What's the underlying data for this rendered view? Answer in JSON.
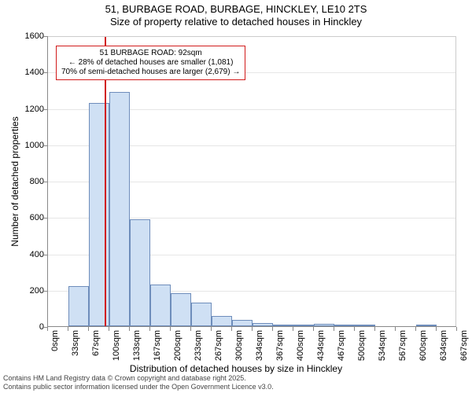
{
  "title_line1": "51, BURBAGE ROAD, BURBAGE, HINCKLEY, LE10 2TS",
  "title_line2": "Size of property relative to detached houses in Hinckley",
  "chart": {
    "type": "histogram",
    "bar_fill": "#cfe0f4",
    "bar_border": "#6e8dbb",
    "background_color": "#ffffff",
    "grid_color": "#e6e6e6",
    "marker_color": "#d11a1a",
    "annotation_border": "#d11a1a",
    "y_axis_label": "Number of detached properties",
    "x_axis_label": "Distribution of detached houses by size in Hinckley",
    "y_max": 1600,
    "y_tick_step": 200,
    "y_ticks": [
      0,
      200,
      400,
      600,
      800,
      1000,
      1200,
      1400,
      1600
    ],
    "x_tick_labels": [
      "0sqm",
      "33sqm",
      "67sqm",
      "100sqm",
      "133sqm",
      "167sqm",
      "200sqm",
      "233sqm",
      "267sqm",
      "300sqm",
      "334sqm",
      "367sqm",
      "400sqm",
      "434sqm",
      "467sqm",
      "500sqm",
      "534sqm",
      "567sqm",
      "600sqm",
      "634sqm",
      "667sqm"
    ],
    "bin_count": 20,
    "bin_values": [
      0,
      220,
      1230,
      1290,
      590,
      230,
      180,
      130,
      55,
      35,
      18,
      8,
      4,
      12,
      2,
      2,
      0,
      0,
      2,
      0
    ],
    "marker_sqm": 92,
    "marker_range_sqm": 667,
    "annotation": {
      "line1": "51 BURBAGE ROAD: 92sqm",
      "line2": "← 28% of detached houses are smaller (1,081)",
      "line3": "70% of semi-detached houses are larger (2,679) →"
    }
  },
  "footer_line1": "Contains HM Land Registry data © Crown copyright and database right 2025.",
  "footer_line2": "Contains public sector information licensed under the Open Government Licence v3.0."
}
